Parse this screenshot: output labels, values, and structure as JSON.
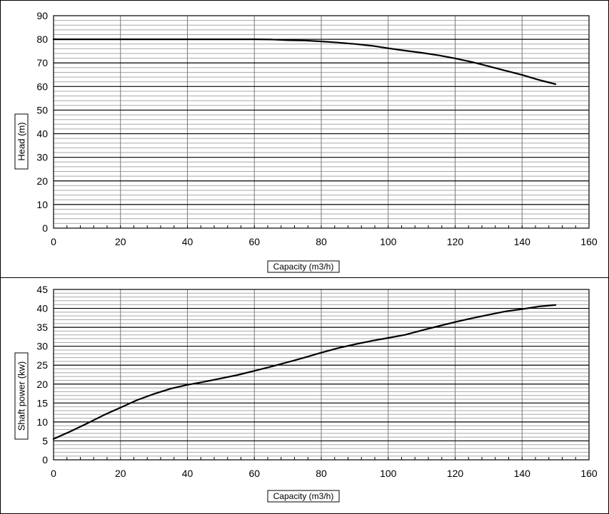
{
  "chart_data": [
    {
      "type": "line",
      "xlabel": "Capacity (m3/h)",
      "ylabel": "Head (m)",
      "xlim": [
        0,
        160
      ],
      "ylim": [
        0,
        90
      ],
      "xticks": [
        "0",
        "20",
        "40",
        "60",
        "80",
        "100",
        "120",
        "140",
        "160"
      ],
      "yticks": [
        "0",
        "10",
        "20",
        "30",
        "40",
        "50",
        "60",
        "70",
        "80",
        "90"
      ],
      "grid": true,
      "series": [
        {
          "x": [
            0,
            20,
            40,
            60,
            65,
            70,
            75,
            80,
            85,
            90,
            95,
            100,
            105,
            110,
            115,
            120,
            125,
            130,
            135,
            140,
            145,
            150
          ],
          "y": [
            80,
            80,
            80,
            80,
            79.9,
            79.6,
            79.5,
            79.1,
            78.6,
            78.0,
            77.3,
            76.2,
            75.2,
            74.3,
            73.2,
            71.9,
            70.4,
            68.6,
            66.7,
            64.9,
            62.8,
            61.0
          ]
        }
      ]
    },
    {
      "type": "line",
      "xlabel": "Capacity (m3/h)",
      "ylabel": "Shaft power (kw)",
      "xlim": [
        0,
        160
      ],
      "ylim": [
        0,
        45
      ],
      "xticks": [
        "0",
        "20",
        "40",
        "60",
        "80",
        "100",
        "120",
        "140",
        "160"
      ],
      "yticks": [
        "0",
        "5",
        "10",
        "15",
        "20",
        "25",
        "30",
        "35",
        "40",
        "45"
      ],
      "grid": true,
      "series": [
        {
          "x": [
            0,
            5,
            10,
            15,
            20,
            25,
            30,
            35,
            40,
            45,
            50,
            55,
            60,
            65,
            70,
            75,
            80,
            85,
            90,
            95,
            100,
            105,
            110,
            115,
            120,
            125,
            130,
            135,
            140,
            145,
            150
          ],
          "y": [
            5.5,
            7.5,
            9.6,
            11.8,
            13.8,
            15.8,
            17.4,
            18.8,
            19.8,
            20.6,
            21.5,
            22.4,
            23.5,
            24.6,
            25.8,
            27.0,
            28.3,
            29.5,
            30.5,
            31.4,
            32.2,
            33.0,
            34.2,
            35.3,
            36.4,
            37.4,
            38.3,
            39.2,
            39.8,
            40.5,
            40.9
          ]
        }
      ]
    }
  ]
}
